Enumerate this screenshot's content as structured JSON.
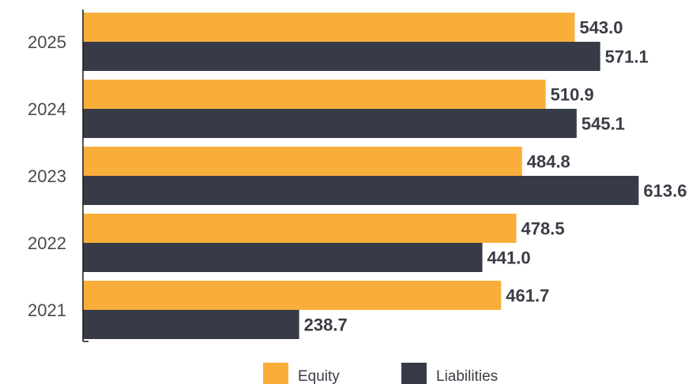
{
  "chart_data": {
    "type": "bar",
    "orientation": "horizontal",
    "categories": [
      "2025",
      "2024",
      "2023",
      "2022",
      "2021"
    ],
    "series": [
      {
        "name": "Equity",
        "color": "#F9AE3A",
        "values": [
          543.0,
          510.9,
          484.8,
          478.5,
          461.7
        ],
        "labels": [
          "543.0",
          "510.9",
          "484.8",
          "478.5",
          "461.7"
        ]
      },
      {
        "name": "Liabilities",
        "color": "#363B47",
        "values": [
          571.1,
          545.1,
          613.6,
          441.0,
          238.7
        ],
        "labels": [
          "571.1",
          "545.1",
          "613.6",
          "441.0",
          "238.7"
        ]
      }
    ],
    "xlim": [
      0,
      615
    ],
    "grid": false,
    "legend": "bottom"
  }
}
